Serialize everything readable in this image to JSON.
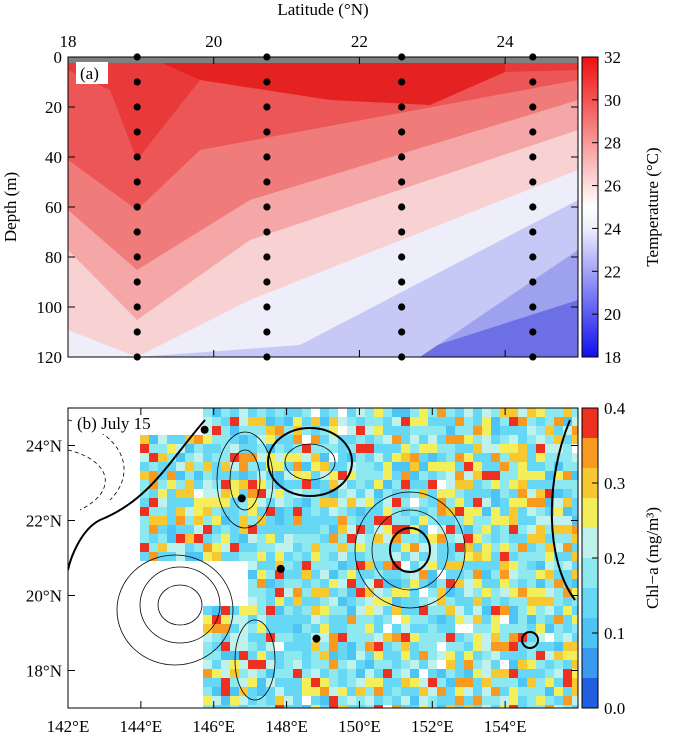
{
  "chart_data": [
    {
      "type": "section",
      "label": "(a)",
      "xlabel": "Latitude (°N)",
      "ylabel": "Depth (m)",
      "xlim": [
        18,
        25
      ],
      "xticks": [
        18,
        20,
        22,
        24
      ],
      "ylim": [
        120,
        0
      ],
      "yticks": [
        0,
        20,
        40,
        60,
        80,
        100,
        120
      ],
      "colorbar": {
        "label": "Temperature (°C)",
        "lim": [
          18,
          32
        ],
        "ticks": [
          18,
          20,
          22,
          24,
          26,
          28,
          30,
          32
        ]
      },
      "series": [
        {
          "x": [
            18.95,
            18.95,
            18.95,
            18.95,
            18.95,
            18.95,
            18.95,
            18.95,
            18.95,
            18.95,
            18.95,
            18.95,
            18.95
          ],
          "values": [
            0,
            10,
            20,
            30,
            40,
            50,
            60,
            70,
            80,
            90,
            100,
            110,
            120
          ]
        },
        {
          "x": [
            20.73,
            20.73,
            20.73,
            20.73,
            20.73,
            20.73,
            20.73,
            20.73,
            20.73,
            20.73,
            20.73,
            20.73,
            20.73
          ],
          "values": [
            0,
            10,
            20,
            30,
            40,
            50,
            60,
            70,
            80,
            90,
            100,
            110,
            120
          ]
        },
        {
          "x": [
            22.58,
            22.58,
            22.58,
            22.58,
            22.58,
            22.58,
            22.58,
            22.58,
            22.58,
            22.58,
            22.58,
            22.58,
            22.58
          ],
          "values": [
            0,
            10,
            20,
            30,
            40,
            50,
            60,
            70,
            80,
            90,
            100,
            110,
            120
          ]
        },
        {
          "x": [
            24.38,
            24.38,
            24.38,
            24.38,
            24.38,
            24.38,
            24.38,
            24.38,
            24.38,
            24.38,
            24.38,
            24.38,
            24.38
          ],
          "values": [
            0,
            10,
            20,
            30,
            40,
            50,
            60,
            70,
            80,
            90,
            100,
            110,
            120
          ]
        }
      ]
    },
    {
      "type": "map",
      "label": "(b) July 15",
      "xlim": [
        142,
        156
      ],
      "xticks": [
        {
          "value": 142,
          "label": "142°E"
        },
        {
          "value": 144,
          "label": "144°E"
        },
        {
          "value": 146,
          "label": "146°E"
        },
        {
          "value": 148,
          "label": "148°E"
        },
        {
          "value": 150,
          "label": "150°E"
        },
        {
          "value": 152,
          "label": "152°E"
        },
        {
          "value": 154,
          "label": "154°E"
        }
      ],
      "ylim": [
        17,
        25
      ],
      "yticks": [
        {
          "value": 18,
          "label": "18°N"
        },
        {
          "value": 20,
          "label": "20°N"
        },
        {
          "value": 22,
          "label": "22°N"
        },
        {
          "value": 24,
          "label": "24°N"
        }
      ],
      "colorbar": {
        "label": "Chl−a (mg/m³)",
        "lim": [
          0,
          0.4
        ],
        "ticks": [
          {
            "value": 0,
            "label": "0.0"
          },
          0.1,
          0.2,
          0.3,
          0.4
        ]
      },
      "x": [
        145.75,
        146.77,
        147.84,
        148.82
      ],
      "values": [
        24.42,
        22.59,
        20.71,
        18.85
      ]
    }
  ]
}
